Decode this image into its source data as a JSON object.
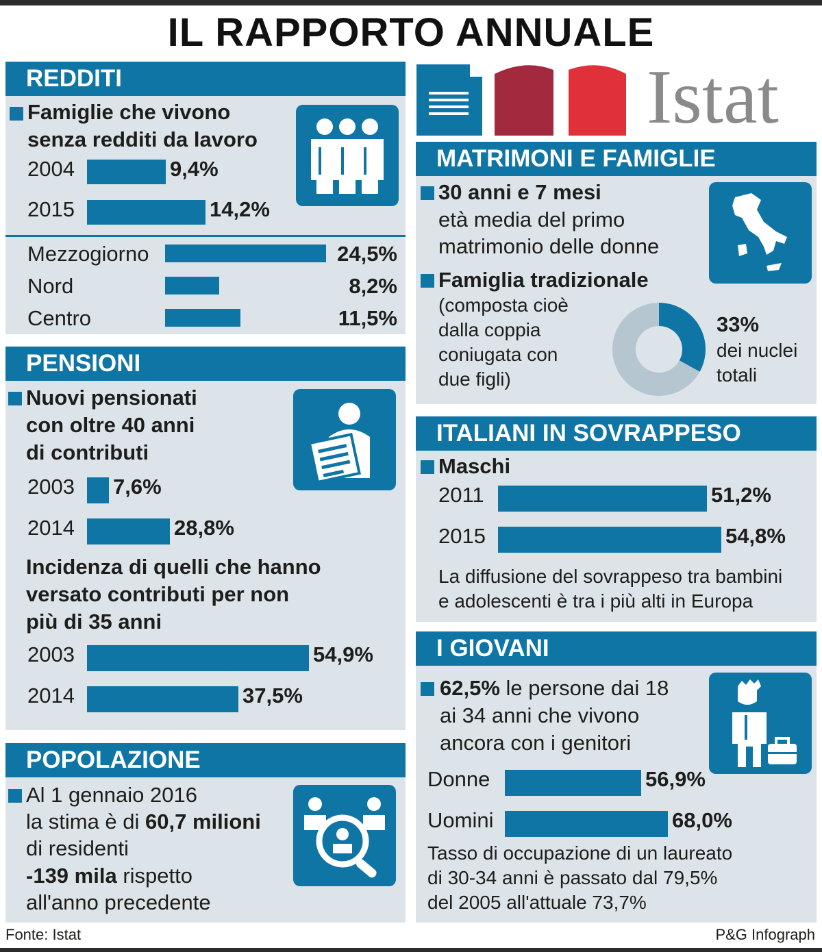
{
  "title": "IL RAPPORTO ANNUALE",
  "logo_text": "Istat",
  "colors": {
    "accent": "#0f75a5",
    "panel": "#dde4e9",
    "logo_dark_red": "#a3293f",
    "logo_red": "#e0303a",
    "logo_gray": "#8a8a8a"
  },
  "redditi": {
    "header": "REDDITI",
    "title_line1": "Famiglie che vivono",
    "title_line2": "senza redditi da lavoro",
    "icon": "family-icon",
    "rows": [
      {
        "label": "2004",
        "value": "9,4%"
      },
      {
        "label": "2015",
        "value": "14,2%"
      }
    ],
    "regions": [
      {
        "label": "Mezzogiorno",
        "value": "24,5%"
      },
      {
        "label": "Nord",
        "value": "8,2%"
      },
      {
        "label": "Centro",
        "value": "11,5%"
      }
    ]
  },
  "pensioni": {
    "header": "PENSIONI",
    "title_line1": "Nuovi pensionati",
    "title_line2": "con oltre 40 anni",
    "title_line3": "di contributi",
    "icon": "pensioner-document-icon",
    "rows": [
      {
        "label": "2003",
        "value": "7,6%"
      },
      {
        "label": "2014",
        "value": "28,8%"
      }
    ],
    "sub_line1": "Incidenza di quelli che hanno",
    "sub_line2": "versato contributi per non",
    "sub_line3": "più di 35 anni",
    "rows2": [
      {
        "label": "2003",
        "value": "54,9%"
      },
      {
        "label": "2014",
        "value": "37,5%"
      }
    ]
  },
  "popolazione": {
    "header": "POPOLAZIONE",
    "l1": "Al 1 gennaio 2016",
    "l2a": "la stima è di ",
    "l2b": "60,7 milioni",
    "l3": "di residenti",
    "l4a": "-139 mila",
    "l4b": " rispetto",
    "l5": "all'anno precedente",
    "icon": "population-search-icon"
  },
  "matrimoni": {
    "header": "MATRIMONI E FAMIGLIE",
    "age_bold": "30 anni e 7 mesi",
    "age_l2": "età media del primo",
    "age_l3": "matrimonio delle donne",
    "icon": "italy-map-icon",
    "fam_title": "Famiglia tradizionale",
    "fam_l1": "(composta cioè",
    "fam_l2": "dalla coppia",
    "fam_l3": "coniugata con",
    "fam_l4": "due figli)",
    "pct": "33%",
    "pct_l1": "dei nuclei",
    "pct_l2": "totali"
  },
  "sovrappeso": {
    "header": "ITALIANI IN SOVRAPPESO",
    "group": "Maschi",
    "rows": [
      {
        "label": "2011",
        "value": "51,2%"
      },
      {
        "label": "2015",
        "value": "54,8%"
      }
    ],
    "note_l1": "La diffusione del sovrappeso tra bambini",
    "note_l2": "e adolescenti è tra i più alti in Europa"
  },
  "giovani": {
    "header": "I GIOVANI",
    "l1a": "62,5%",
    "l1b": " le persone dai 18",
    "l2": "ai 34 anni che vivono",
    "l3": "ancora con i genitori",
    "icon": "young-person-briefcase-icon",
    "rows": [
      {
        "label": "Donne",
        "value": "56,9%"
      },
      {
        "label": "Uomini",
        "value": "68,0%"
      }
    ],
    "note_l1": "Tasso di occupazione di un laureato",
    "note_l2": "di 30-34 anni è passato dal 79,5%",
    "note_l3": "del 2005 all'attuale 73,7%"
  },
  "footer": {
    "source": "Fonte: Istat",
    "credit": "P&G Infograph"
  },
  "chart_data": [
    {
      "type": "bar",
      "title": "Famiglie che vivono senza redditi da lavoro",
      "categories": [
        "2004",
        "2015"
      ],
      "values": [
        9.4,
        14.2
      ],
      "unit": "%"
    },
    {
      "type": "bar",
      "title": "",
      "categories": [
        "Mezzogiorno",
        "Nord",
        "Centro"
      ],
      "values": [
        24.5,
        8.2,
        11.5
      ],
      "unit": "%"
    },
    {
      "type": "bar",
      "title": "Nuovi pensionati con oltre 40 anni di contributi",
      "categories": [
        "2003",
        "2014"
      ],
      "values": [
        7.6,
        28.8
      ],
      "unit": "%"
    },
    {
      "type": "bar",
      "title": "Incidenza di quelli che hanno versato contributi per non più di 35 anni",
      "categories": [
        "2003",
        "2014"
      ],
      "values": [
        54.9,
        37.5
      ],
      "unit": "%"
    },
    {
      "type": "pie",
      "title": "Famiglia tradizionale",
      "values": [
        33,
        67
      ],
      "unit": "%"
    },
    {
      "type": "bar",
      "title": "Maschi",
      "categories": [
        "2011",
        "2015"
      ],
      "values": [
        51.2,
        54.8
      ],
      "unit": "%"
    },
    {
      "type": "bar",
      "title": "",
      "categories": [
        "Donne",
        "Uomini"
      ],
      "values": [
        56.9,
        68.0
      ],
      "unit": "%"
    }
  ]
}
